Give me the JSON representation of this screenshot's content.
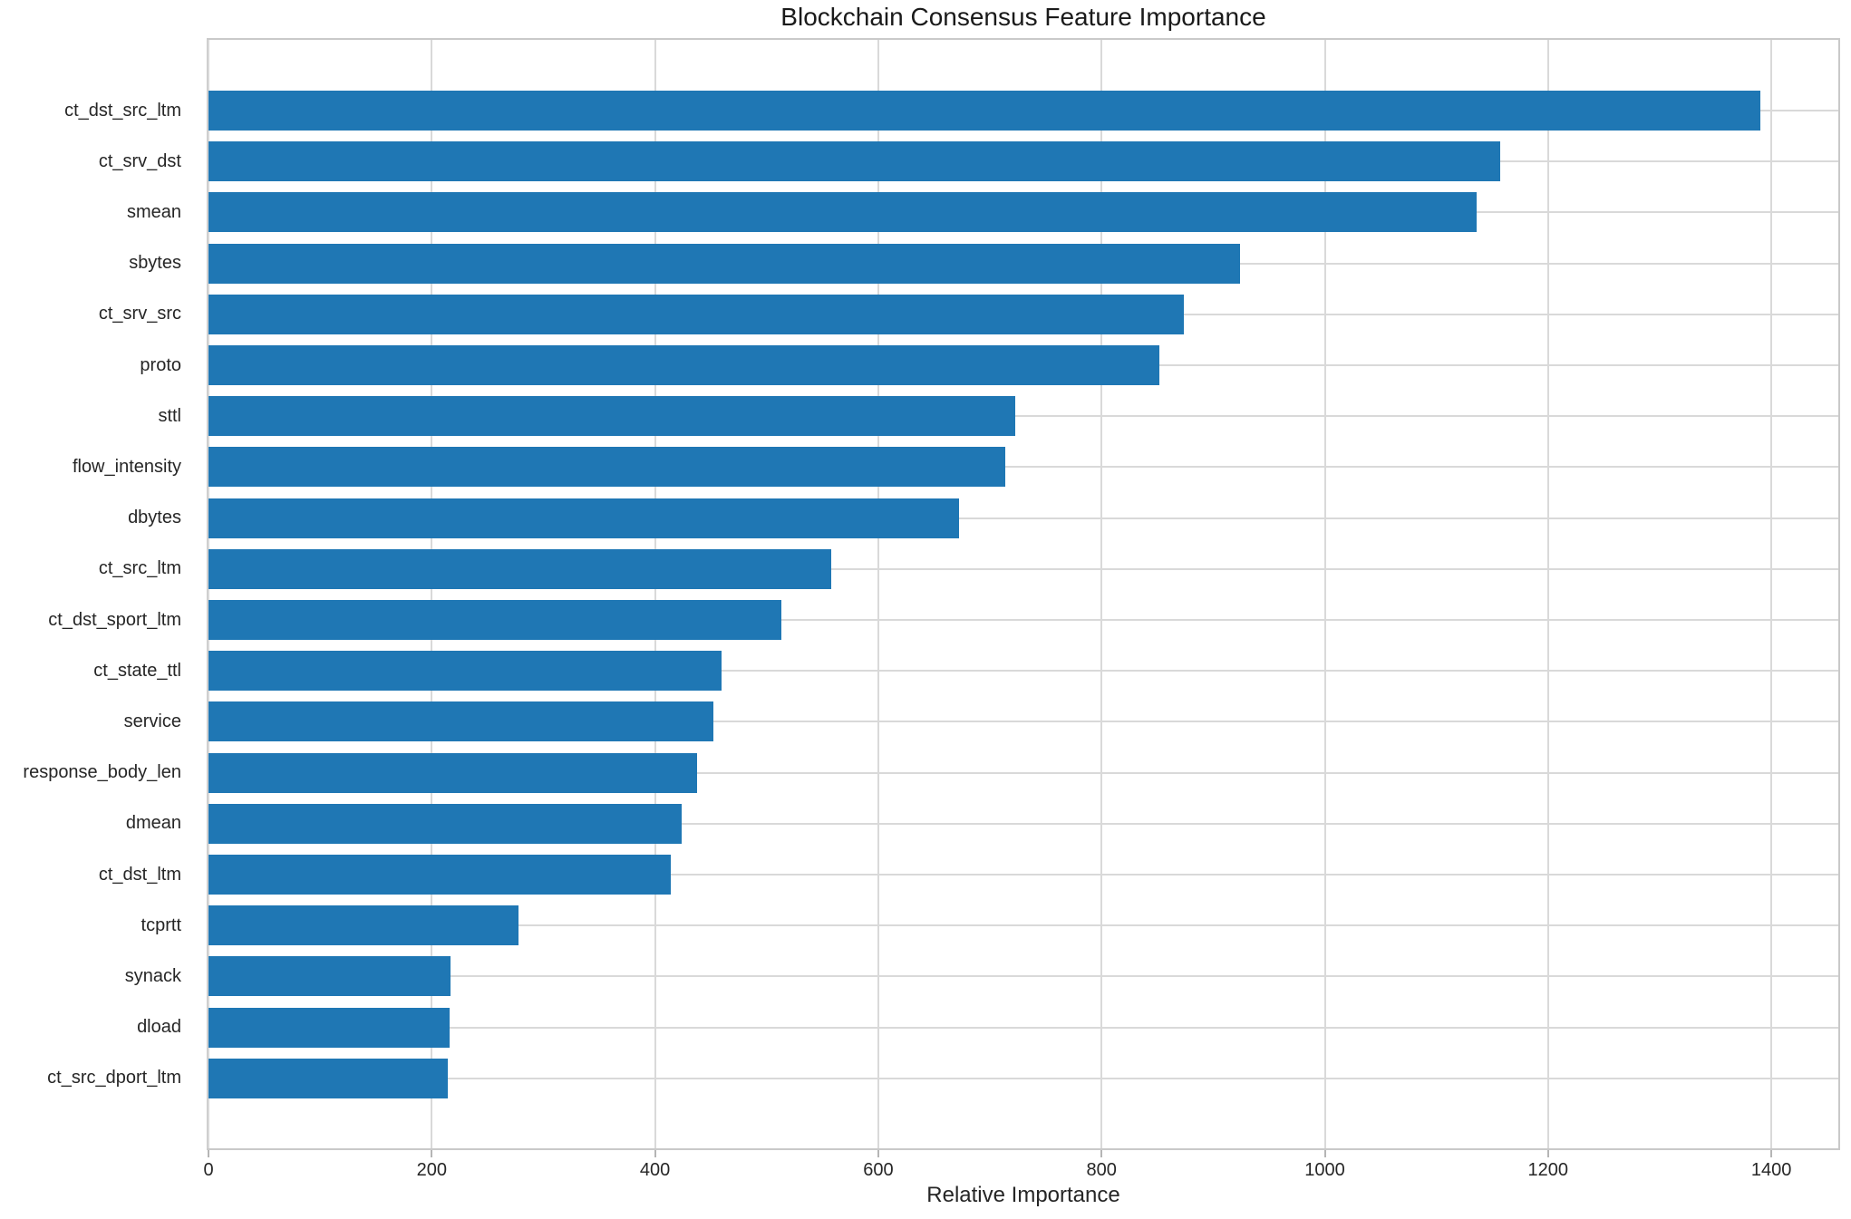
{
  "title": "Blockchain Consensus Feature Importance",
  "xlabel": "Relative Importance",
  "colors": {
    "bar": "#1f77b4",
    "grid": "#d9d9d9",
    "spine": "#c9c9c9",
    "tick": "#b5b5b5",
    "text": "#262626",
    "title_text": "#1a1a1a",
    "background": "#ffffff"
  },
  "chart_data": {
    "type": "bar",
    "orientation": "horizontal",
    "title": "Blockchain Consensus Feature Importance",
    "xlabel": "Relative Importance",
    "ylabel": "",
    "categories": [
      "ct_dst_src_ltm",
      "ct_srv_dst",
      "smean",
      "sbytes",
      "ct_srv_src",
      "proto",
      "sttl",
      "flow_intensity",
      "dbytes",
      "ct_src_ltm",
      "ct_dst_sport_ltm",
      "ct_state_ttl",
      "service",
      "response_body_len",
      "dmean",
      "ct_dst_ltm",
      "tcprtt",
      "synack",
      "dload",
      "ct_src_dport_ltm"
    ],
    "values": [
      1390,
      1157,
      1136,
      924,
      874,
      852,
      723,
      714,
      672,
      558,
      513,
      460,
      452,
      438,
      424,
      414,
      278,
      217,
      216,
      214
    ],
    "xticks": [
      0,
      200,
      400,
      600,
      800,
      1000,
      1200,
      1400
    ],
    "xlim": [
      0,
      1460
    ],
    "grid": true,
    "legend": false
  }
}
